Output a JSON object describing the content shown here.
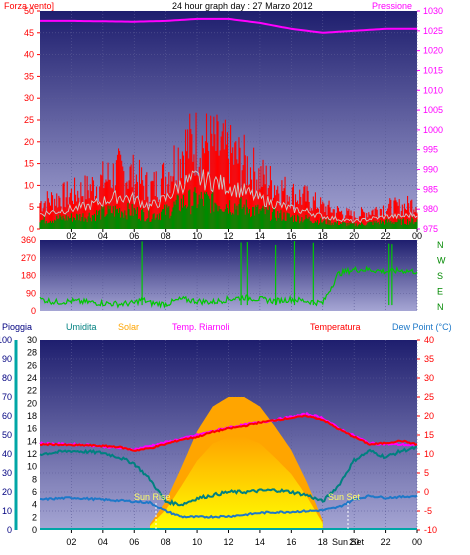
{
  "title": "24 hour graph day : 27 Marzo 2012",
  "colors": {
    "bg": "#ffffff",
    "plot_top": "#1e1e6e",
    "plot_bottom": "#9f9fce",
    "wind_gust": "#ff0000",
    "wind_avg": "#c8c8c8",
    "wind_green": "#008a00",
    "pressure": "#ff00ff",
    "direction": "#00c800",
    "rain": "#00a6a6",
    "humidity": "#008080",
    "solar_light": "#ffff00",
    "solar_dark": "#ffa500",
    "feels": "#ff00ff",
    "temperature": "#ff0000",
    "dewpoint": "#1e78c8",
    "axis_text_left": "#ff0000",
    "axis_text_right": "#ff00ff",
    "axis_blue": "#000080",
    "dir_labels": "#008800"
  },
  "x_tick_labels": [
    "02",
    "04",
    "06",
    "08",
    "10",
    "12",
    "14",
    "16",
    "18",
    "20",
    "22",
    "00"
  ],
  "top": {
    "left_title": "Forza vento]",
    "right_title": "Pressione",
    "left_ticks": [
      "0",
      "5",
      "10",
      "15",
      "20",
      "25",
      "30",
      "35",
      "40",
      "45",
      "50"
    ],
    "right_ticks": [
      "975",
      "980",
      "985",
      "990",
      "995",
      "1000",
      "1005",
      "1010",
      "1015",
      "1020",
      "1025",
      "1030"
    ]
  },
  "mid": {
    "left_ticks": [
      "0",
      "90",
      "180",
      "270",
      "360"
    ],
    "right_labels": [
      "N",
      "W",
      "S",
      "E",
      "N"
    ]
  },
  "bottom": {
    "legend": {
      "rain": "Pioggia",
      "humidity": "Umidita",
      "solar": "Solar",
      "feels": "Temp. Riarnoli",
      "temperature": "Temperatura",
      "dewpoint": "Dew Point (°C)"
    },
    "rain_ticks": [
      "0",
      "10",
      "20",
      "30",
      "40",
      "50",
      "60",
      "70",
      "80",
      "90",
      "100"
    ],
    "hum_ticks": [
      "0",
      "2",
      "4",
      "6",
      "8",
      "10",
      "12",
      "14",
      "16",
      "18",
      "20",
      "22",
      "24",
      "26",
      "28",
      "30"
    ],
    "temp_ticks": [
      "-10",
      "-5",
      "0",
      "5",
      "10",
      "15",
      "20",
      "25",
      "30",
      "35",
      "40"
    ],
    "sunrise_label": "Sun Rise",
    "sunset_label": "Sun Set",
    "sunset_axis_label": "Sun Set"
  },
  "chart_data": [
    {
      "type": "line",
      "title": "24 hour graph day : 27 Marzo 2012",
      "xlabel": "",
      "xlim": [
        0,
        24
      ],
      "series": [
        {
          "name": "Forza vento]",
          "axis": "left",
          "ylim": [
            0,
            50
          ],
          "x": [
            0,
            1,
            2,
            3,
            4,
            5,
            6,
            7,
            8,
            9,
            10,
            11,
            12,
            13,
            14,
            15,
            16,
            17,
            18,
            19,
            20,
            21,
            22,
            23,
            24
          ],
          "values": [
            6,
            7,
            8,
            9,
            11,
            13,
            12,
            9,
            12,
            18,
            20,
            19,
            17,
            15,
            12,
            10,
            8,
            7,
            5,
            4,
            3,
            4,
            5,
            5,
            6
          ]
        },
        {
          "name": "Pressione",
          "axis": "right",
          "ylim": [
            975,
            1030
          ],
          "x": [
            0,
            2,
            4,
            6,
            8,
            10,
            12,
            14,
            16,
            18,
            20,
            22,
            24
          ],
          "values": [
            1027.5,
            1027.5,
            1027.4,
            1027.3,
            1027.5,
            1028,
            1028,
            1027,
            1025.5,
            1024.5,
            1025,
            1025.5,
            1025.5
          ]
        }
      ]
    },
    {
      "type": "scatter",
      "ylabel": "",
      "ylim": [
        0,
        360
      ],
      "xlim": [
        0,
        24
      ],
      "series": [
        {
          "name": "",
          "x": [
            0,
            1,
            2,
            3,
            4,
            5,
            6,
            6.5,
            7,
            8,
            9,
            10,
            11,
            12,
            13,
            14,
            15,
            16,
            17,
            18,
            19,
            20,
            21,
            22,
            23,
            24
          ],
          "values": [
            60,
            45,
            50,
            45,
            40,
            35,
            40,
            60,
            40,
            35,
            60,
            50,
            45,
            60,
            70,
            60,
            50,
            60,
            50,
            40,
            190,
            210,
            210,
            200,
            205,
            200
          ]
        }
      ]
    },
    {
      "type": "area",
      "xlim": [
        0,
        24
      ],
      "series": [
        {
          "name": "Solar",
          "ylim": [
            0,
            100
          ],
          "x": [
            7,
            8,
            9,
            10,
            11,
            12,
            13,
            14,
            15,
            16,
            17,
            18
          ],
          "values": [
            3,
            15,
            33,
            52,
            65,
            70,
            70,
            65,
            54,
            42,
            25,
            5
          ]
        },
        {
          "name": "Temperatura",
          "axis": "right",
          "ylim": [
            -10,
            40
          ],
          "x": [
            0,
            1,
            2,
            3,
            4,
            5,
            6,
            7,
            8,
            9,
            10,
            11,
            12,
            13,
            14,
            15,
            16,
            17,
            18,
            19,
            20,
            21,
            22,
            23,
            24
          ],
          "values": [
            12.5,
            12.5,
            12.3,
            12.3,
            12.1,
            11.9,
            10.9,
            11.5,
            12.6,
            13.8,
            14.5,
            15.8,
            16.7,
            17.4,
            18.3,
            18.9,
            19.5,
            20,
            19,
            16.6,
            14.5,
            12.5,
            12.9,
            13.5,
            12.5
          ]
        },
        {
          "name": "Temp. Riarnoli",
          "axis": "right",
          "ylim": [
            -10,
            40
          ],
          "x": [
            0,
            3,
            6,
            9,
            12,
            15,
            17,
            18,
            19,
            21,
            24
          ],
          "values": [
            12.8,
            12.4,
            11.2,
            14,
            17,
            19,
            20.5,
            19.5,
            16.8,
            12.8,
            12.3
          ]
        },
        {
          "name": "Umidita",
          "axis": "left2",
          "ylim": [
            0,
            30
          ],
          "x": [
            0,
            2,
            4,
            5,
            6,
            7,
            8,
            9,
            10,
            11,
            12,
            13,
            14,
            15,
            16,
            17,
            18,
            19,
            20,
            21,
            22,
            23,
            24
          ],
          "values": [
            12,
            12.5,
            12.2,
            11.5,
            10.5,
            8,
            4.5,
            4,
            5,
            5.5,
            6,
            6,
            6.2,
            6.3,
            6,
            5.5,
            4.5,
            7,
            11,
            12.5,
            11.5,
            12.5,
            13
          ]
        },
        {
          "name": "Dew Point (°C)",
          "axis": "right",
          "ylim": [
            -10,
            40
          ],
          "x": [
            0,
            2,
            4,
            6,
            7,
            8,
            9,
            10,
            11,
            12,
            13,
            14,
            15,
            16,
            17,
            18,
            19,
            20,
            21,
            22,
            23,
            24
          ],
          "values": [
            -2,
            -1.5,
            -2,
            -2.5,
            -2.8,
            -5,
            -6.5,
            -6.6,
            -6.5,
            -6.4,
            -6,
            -5.5,
            -5.3,
            -5.2,
            -5,
            -4.8,
            -4,
            -2,
            -1,
            -1.5,
            -1.3,
            -1
          ]
        },
        {
          "name": "Pioggia",
          "ylim": [
            0,
            100
          ],
          "x": [
            0,
            24
          ],
          "values": [
            0,
            0
          ]
        }
      ]
    }
  ]
}
